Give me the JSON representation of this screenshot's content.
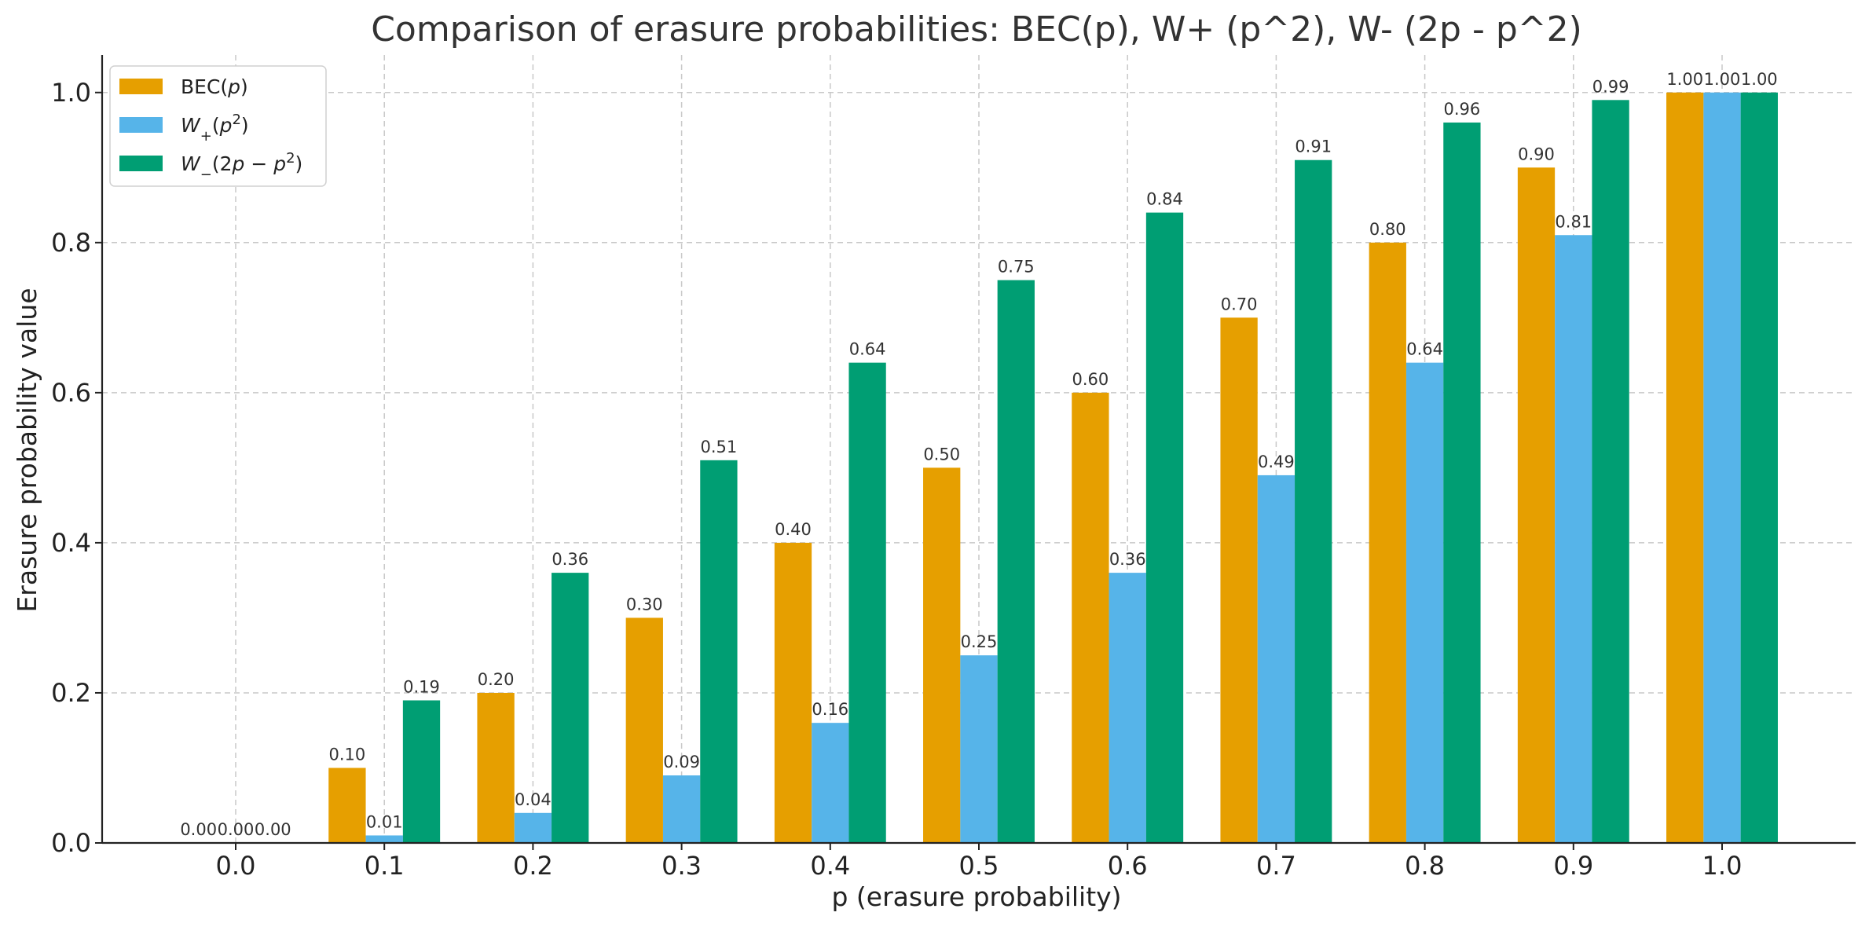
{
  "chart_data": {
    "type": "bar",
    "title": "Comparison of erasure probabilities: BEC(p), W+ (p^2), W- (2p - p^2)",
    "xlabel": "p (erasure probability)",
    "ylabel": "Erasure probability value",
    "categories": [
      "0.0",
      "0.1",
      "0.2",
      "0.3",
      "0.4",
      "0.5",
      "0.6",
      "0.7",
      "0.8",
      "0.9",
      "1.0"
    ],
    "ylim": [
      0,
      1.05
    ],
    "yticks": [
      "0.0",
      "0.2",
      "0.4",
      "0.6",
      "0.8",
      "1.0"
    ],
    "grid": true,
    "legend_position": "top-left",
    "series": [
      {
        "name": "BEC(p)",
        "legend_parts": [
          {
            "t": "BEC("
          },
          {
            "t": "p",
            "i": true
          },
          {
            "t": ")"
          }
        ],
        "color": "#E69F00",
        "values": [
          0.0,
          0.1,
          0.2,
          0.3,
          0.4,
          0.5,
          0.6,
          0.7,
          0.8,
          0.9,
          1.0
        ],
        "labels": [
          "0.00",
          "0.10",
          "0.20",
          "0.30",
          "0.40",
          "0.50",
          "0.60",
          "0.70",
          "0.80",
          "0.90",
          "1.00"
        ]
      },
      {
        "name": "W+(p^2)",
        "legend_parts": [
          {
            "t": "W",
            "i": true
          },
          {
            "t": "+",
            "sub": true
          },
          {
            "t": "("
          },
          {
            "t": "p",
            "i": true
          },
          {
            "t": "2",
            "sup": true
          },
          {
            "t": ")"
          }
        ],
        "color": "#56B4E9",
        "values": [
          0.0,
          0.01,
          0.04,
          0.09,
          0.16,
          0.25,
          0.36,
          0.49,
          0.64,
          0.81,
          1.0
        ],
        "labels": [
          "0.00",
          "0.01",
          "0.04",
          "0.09",
          "0.16",
          "0.25",
          "0.36",
          "0.49",
          "0.64",
          "0.81",
          "1.00"
        ]
      },
      {
        "name": "W-(2p - p^2)",
        "legend_parts": [
          {
            "t": "W",
            "i": true
          },
          {
            "t": "−",
            "sub": true
          },
          {
            "t": "(2"
          },
          {
            "t": "p",
            "i": true
          },
          {
            "t": " − "
          },
          {
            "t": "p",
            "i": true
          },
          {
            "t": "2",
            "sup": true
          },
          {
            "t": ")"
          }
        ],
        "color": "#009E73",
        "values": [
          0.0,
          0.19,
          0.36,
          0.51,
          0.64,
          0.75,
          0.84,
          0.91,
          0.96,
          0.99,
          1.0
        ],
        "labels": [
          "0.00",
          "0.19",
          "0.36",
          "0.51",
          "0.64",
          "0.75",
          "0.84",
          "0.91",
          "0.96",
          "0.99",
          "1.00"
        ]
      }
    ]
  }
}
